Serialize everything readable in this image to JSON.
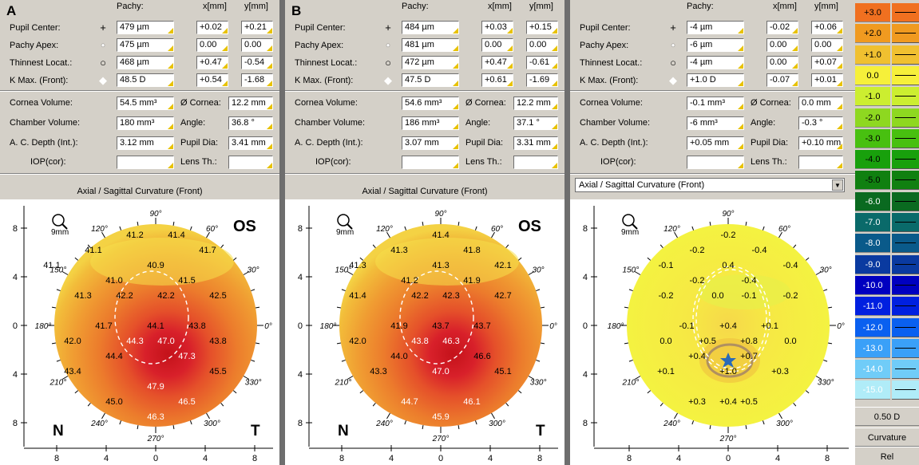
{
  "columns": {
    "pachy": "Pachy:",
    "x": "x[mm]",
    "y": "y[mm]"
  },
  "row_labels": [
    "Pupil Center:",
    "Pachy Apex:",
    "Thinnest Locat.:",
    "K Max. (Front):"
  ],
  "row_symbols": [
    "+",
    "•",
    "○",
    "◆"
  ],
  "vol_labels": {
    "cornea_volume": "Cornea Volume:",
    "cornea_dia": "Ø Cornea:",
    "chamber_volume": "Chamber Volume:",
    "angle": "Angle:",
    "ac_depth": "A. C. Depth (Int.):",
    "pupil_dia": "Pupil Dia:",
    "iop": "IOP(cor):",
    "lens": "Lens Th.:"
  },
  "panels": [
    {
      "label": "A",
      "rows": [
        [
          "479 µm",
          "+0.02",
          "+0.21"
        ],
        [
          "475 µm",
          "0.00",
          "0.00"
        ],
        [
          "468 µm",
          "+0.47",
          "-0.54"
        ],
        [
          "48.5 D",
          "+0.54",
          "-1.68"
        ]
      ],
      "cornea_volume": "54.5 mm³",
      "cornea_dia": "12.2 mm",
      "chamber_volume": "180 mm³",
      "angle": "36.8 °",
      "ac_depth": "3.12 mm",
      "pupil_dia": "3.41 mm",
      "iop": "",
      "lens": "",
      "map_title": "Axial / Sagittal Curvature (Front)",
      "eye": "OS",
      "nasal": "N",
      "temporal": "T",
      "zoom": "9mm",
      "values": [
        {
          "t": "41.2",
          "c": "-2,-6"
        },
        {
          "t": "41.4",
          "c": "2,-6"
        },
        {
          "t": "41.1",
          "c": "-6,-5"
        },
        {
          "t": "40.9",
          "c": "-0,-4"
        },
        {
          "t": "41.7",
          "c": "5,-5"
        },
        {
          "t": "41.1",
          "c": "-10,-4"
        },
        {
          "t": "41.0",
          "c": "-4,-3"
        },
        {
          "t": "41.5",
          "c": "3,-3"
        },
        {
          "t": "41.3",
          "c": "-7,-2"
        },
        {
          "t": "42.2",
          "c": "-3,-2"
        },
        {
          "t": "42.2",
          "c": "1,-2"
        },
        {
          "t": "42.5",
          "c": "6,-2"
        },
        {
          "t": "41.7",
          "c": "-5,-0"
        },
        {
          "t": "44.1",
          "c": "-0,0"
        },
        {
          "t": "43.8",
          "c": "4,0"
        },
        {
          "t": "42.0",
          "c": "-8,1"
        },
        {
          "t": "44.3",
          "c": "-2,1"
        },
        {
          "t": "47.0",
          "c": "1,1"
        },
        {
          "t": "43.8",
          "c": "6,1"
        },
        {
          "t": "44.4",
          "c": "-4,2"
        },
        {
          "t": "47.3",
          "c": "3,2"
        },
        {
          "t": "43.4",
          "c": "-8,3"
        },
        {
          "t": "45.5",
          "c": "6,3"
        },
        {
          "t": "47.9",
          "c": "-0,4"
        },
        {
          "t": "45.0",
          "c": "-4,5"
        },
        {
          "t": "46.5",
          "c": "3,5"
        },
        {
          "t": "46.3",
          "c": "-0,6"
        }
      ]
    },
    {
      "label": "B",
      "rows": [
        [
          "484 µm",
          "+0.03",
          "+0.15"
        ],
        [
          "481 µm",
          "0.00",
          "0.00"
        ],
        [
          "472 µm",
          "+0.47",
          "-0.61"
        ],
        [
          "47.5 D",
          "+0.61",
          "-1.69"
        ]
      ],
      "cornea_volume": "54.6 mm³",
      "cornea_dia": "12.2 mm",
      "chamber_volume": "186 mm³",
      "angle": "37.1 °",
      "ac_depth": "3.07 mm",
      "pupil_dia": "3.31 mm",
      "iop": "",
      "lens": "",
      "map_title": "Axial / Sagittal Curvature (Front)",
      "eye": "OS",
      "nasal": "N",
      "temporal": "T",
      "zoom": "9mm",
      "values": [
        {
          "t": "41.4",
          "c": "-0,-6"
        },
        {
          "t": "41.3",
          "c": "-4,-5"
        },
        {
          "t": "41.8",
          "c": "3,-5"
        },
        {
          "t": "41.3",
          "c": "-0,-4"
        },
        {
          "t": "41.3",
          "c": "-8,-4"
        },
        {
          "t": "42.1",
          "c": "6,-4"
        },
        {
          "t": "41.2",
          "c": "-3,-3"
        },
        {
          "t": "41.9",
          "c": "3,-3"
        },
        {
          "t": "41.4",
          "c": "-8,-2"
        },
        {
          "t": "42.2",
          "c": "-2,-2"
        },
        {
          "t": "42.3",
          "c": "1,-2"
        },
        {
          "t": "42.7",
          "c": "6,-2"
        },
        {
          "t": "41.9",
          "c": "-4,-0"
        },
        {
          "t": "43.7",
          "c": "-0,0"
        },
        {
          "t": "43.7",
          "c": "4,0"
        },
        {
          "t": "42.0",
          "c": "-8,1"
        },
        {
          "t": "43.8",
          "c": "-2,1"
        },
        {
          "t": "46.3",
          "c": "1,1"
        },
        {
          "t": "44.0",
          "c": "-4,2"
        },
        {
          "t": "46.6",
          "c": "4,2"
        },
        {
          "t": "43.3",
          "c": "-6,3"
        },
        {
          "t": "47.0",
          "c": "-0,3"
        },
        {
          "t": "45.1",
          "c": "6,3"
        },
        {
          "t": "44.7",
          "c": "-3,5"
        },
        {
          "t": "46.1",
          "c": "3,5"
        },
        {
          "t": "45.9",
          "c": "-0,6"
        }
      ]
    },
    {
      "label": "",
      "rows": [
        [
          "-4 µm",
          "-0.02",
          "+0.06"
        ],
        [
          "-6 µm",
          "0.00",
          "0.00"
        ],
        [
          "-4 µm",
          "0.00",
          "+0.07"
        ],
        [
          "+1.0 D",
          "-0.07",
          "+0.01"
        ]
      ],
      "cornea_volume": "-0.1 mm³",
      "cornea_dia": "0.0 mm",
      "chamber_volume": "-6 mm³",
      "angle": "-0.3 °",
      "ac_depth": "+0.05 mm",
      "pupil_dia": "+0.10 mm",
      "iop": "",
      "lens": "",
      "map_title": "Axial / Sagittal Curvature (Front)",
      "eye": "",
      "nasal": "",
      "temporal": "",
      "zoom": "9mm",
      "values": [
        {
          "t": "-0.2",
          "c": "-0,-6"
        },
        {
          "t": "-0.2",
          "c": "-3,-5"
        },
        {
          "t": "-0.4",
          "c": "3,-5"
        },
        {
          "t": "0.4",
          "c": "-0,-4"
        },
        {
          "t": "-0.1",
          "c": "-6,-4"
        },
        {
          "t": "-0.4",
          "c": "6,-4"
        },
        {
          "t": "-0.2",
          "c": "-3,-3"
        },
        {
          "t": "-0.4",
          "c": "2,-3"
        },
        {
          "t": "-0.2",
          "c": "-6,-2"
        },
        {
          "t": "0.0",
          "c": "-1,-2"
        },
        {
          "t": "-0.1",
          "c": "2,-2"
        },
        {
          "t": "-0.2",
          "c": "6,-2"
        },
        {
          "t": "-0.1",
          "c": "-4,-0"
        },
        {
          "t": "+0.4",
          "c": "-0,0"
        },
        {
          "t": "+0.1",
          "c": "4,0"
        },
        {
          "t": "0.0",
          "c": "-6,1"
        },
        {
          "t": "+0.5",
          "c": "-2,1"
        },
        {
          "t": "+0.8",
          "c": "2,1"
        },
        {
          "t": "0.0",
          "c": "6,1"
        },
        {
          "t": "+0.4",
          "c": "-3,2"
        },
        {
          "t": "+0.7",
          "c": "2,2"
        },
        {
          "t": "+0.1",
          "c": "-6,3"
        },
        {
          "t": "+1.0",
          "c": "-0,3"
        },
        {
          "t": "+0.3",
          "c": "5,3"
        },
        {
          "t": "+0.3",
          "c": "-3,5"
        },
        {
          "t": "+0.5",
          "c": "2,5"
        },
        {
          "t": "+0.4",
          "c": "-0,5"
        }
      ]
    }
  ],
  "axis": {
    "side_ticks": [
      "8",
      "4",
      "0",
      "4",
      "8"
    ],
    "bottom_ticks": [
      "8",
      "4",
      "0",
      "4",
      "8"
    ],
    "degrees": [
      {
        "t": "90°",
        "a": 90
      },
      {
        "t": "60°",
        "a": 60
      },
      {
        "t": "30°",
        "a": 30
      },
      {
        "t": "0°",
        "a": 0
      },
      {
        "t": "330°",
        "a": -30
      },
      {
        "t": "300°",
        "a": -60
      },
      {
        "t": "270°",
        "a": -90
      },
      {
        "t": "240°",
        "a": -120
      },
      {
        "t": "210°",
        "a": -150
      },
      {
        "t": "180°",
        "a": 180
      },
      {
        "t": "150°",
        "a": 150
      },
      {
        "t": "120°",
        "a": 120
      }
    ]
  },
  "scale": {
    "values": [
      "+3.0",
      "+2.0",
      "+1.0",
      "0.0",
      "-1.0",
      "-2.0",
      "-3.0",
      "-4.0",
      "-5.0",
      "-6.0",
      "-7.0",
      "-8.0",
      "-9.0",
      "-10.0",
      "-11.0",
      "-12.0",
      "-13.0",
      "-14.0",
      "-15.0"
    ],
    "colors": [
      "#f07020",
      "#f09a20",
      "#f0c030",
      "#f6f03a",
      "#ccee30",
      "#8ed820",
      "#48c010",
      "#18a00c",
      "#108010",
      "#0a6a20",
      "#0a6a6a",
      "#0a5a8a",
      "#0a3aa0",
      "#0000c0",
      "#0020e0",
      "#0a60f0",
      "#3aa0f8",
      "#70ccf8",
      "#b0ecf8"
    ],
    "step": "0.50 D",
    "mode": "Curvature",
    "rel": "Rel"
  }
}
